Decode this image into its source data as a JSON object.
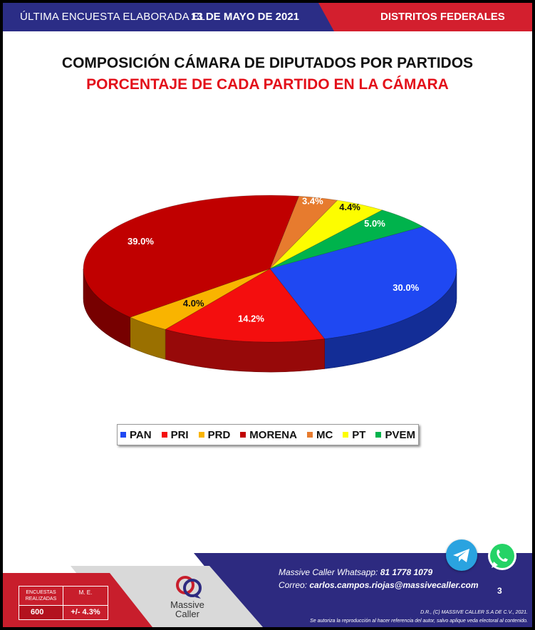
{
  "header": {
    "prefix": "ÚLTIMA ENCUESTA ELABORADA EL",
    "date": "13 DE MAYO DE 2021",
    "section": "DISTRITOS FEDERALES"
  },
  "chart_data": {
    "type": "pie",
    "title": "COMPOSICIÓN CÁMARA DE DIPUTADOS POR PARTIDOS",
    "subtitle": "PORCENTAJE DE CADA PARTIDO EN LA CÁMARA",
    "categories": [
      "PAN",
      "PRI",
      "PRD",
      "MORENA",
      "MC",
      "PT",
      "PVEM"
    ],
    "values": [
      30.0,
      14.2,
      4.0,
      39.0,
      3.4,
      4.4,
      5.0
    ],
    "labels": [
      "30.0%",
      "14.2%",
      "4.0%",
      "39.0%",
      "3.4%",
      "4.4%",
      "5.0%"
    ],
    "colors": [
      "#1f48f2",
      "#f40e0e",
      "#f9b400",
      "#c00000",
      "#e77b2e",
      "#fdfd00",
      "#00b34c"
    ],
    "legend_position": "bottom",
    "style": "3d"
  },
  "footer": {
    "stats": {
      "surveys_label": "ENCUESTAS REALIZADAS",
      "surveys_value": "600",
      "moe_label": "M. E.",
      "moe_value": "+/- 4.3%"
    },
    "logo_line1": "Massive",
    "logo_line2": "Caller",
    "whatsapp_label": "Massive Caller Whatsapp:",
    "whatsapp_number": "81 1778 1079",
    "email_label": "Correo:",
    "email": "carlos.campos.riojas@massivecaller.com",
    "page_number": "3",
    "copyright": "D.R., (C) MASSIVE CALLER S.A DE C.V., 2021.",
    "legal": "Se autoriza la reproducción al hacer referencia del autor, salvo aplique veda electoral al contenido.",
    "icons": [
      "telegram-icon",
      "whatsapp-icon"
    ]
  }
}
